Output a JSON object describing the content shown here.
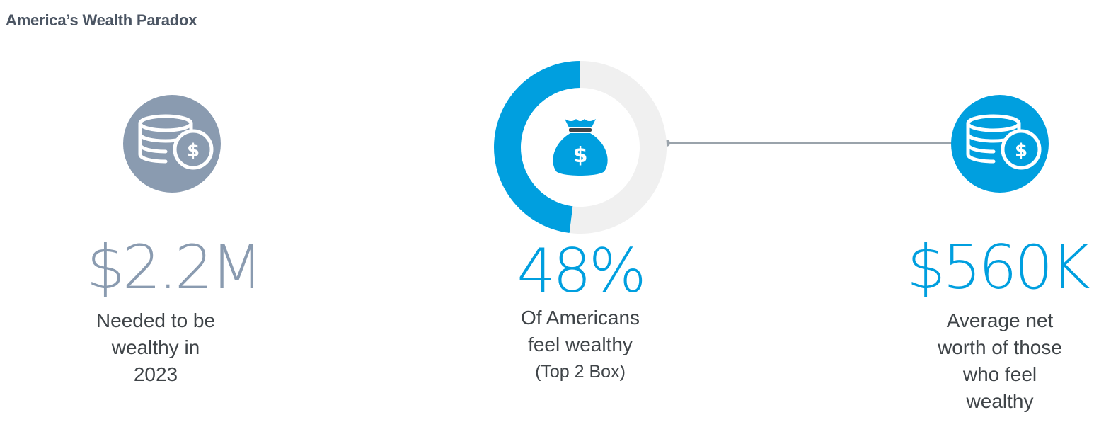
{
  "title": "America’s Wealth Paradox",
  "colors": {
    "accent_blue": "#009fdf",
    "slate_gray": "#8a9bb0",
    "track_gray": "#f0f0f0",
    "text_dark": "#3f4448"
  },
  "stats": {
    "left": {
      "value": "$2.2M",
      "caption_lines": [
        "Needed to be",
        "wealthy in",
        "2023"
      ],
      "icon": "coin-stack-dollar-icon"
    },
    "center": {
      "value": "48%",
      "caption_lines": [
        "Of Americans",
        "feel wealthy"
      ],
      "caption_sub": "(Top 2 Box)",
      "icon": "money-bag-icon"
    },
    "right": {
      "value": "$560K",
      "caption_lines": [
        "Average net",
        "worth of those",
        "who feel",
        "wealthy"
      ],
      "icon": "coin-stack-dollar-icon"
    }
  },
  "chart_data": {
    "type": "pie",
    "variant": "donut",
    "values": [
      48,
      52
    ],
    "colors": [
      "#009fdf",
      "#f0f0f0"
    ]
  }
}
